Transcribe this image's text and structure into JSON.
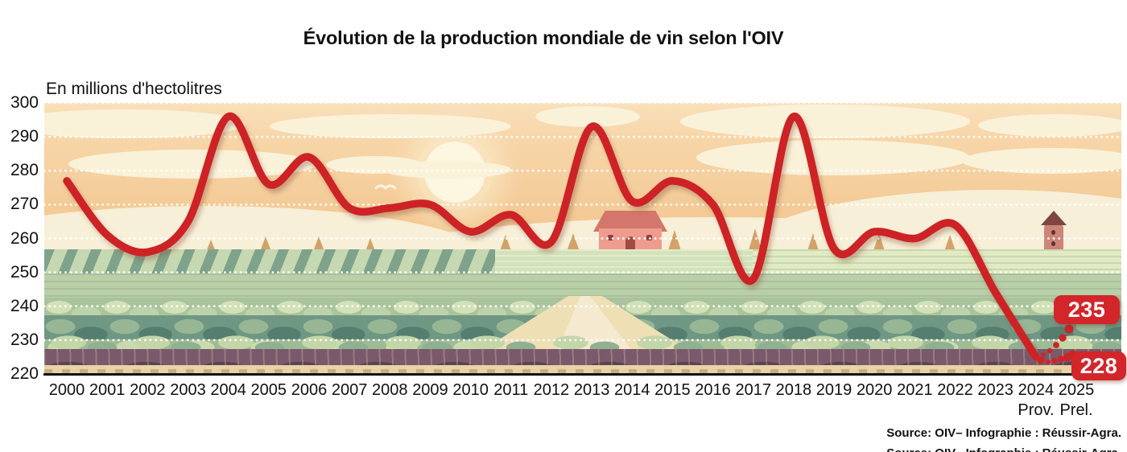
{
  "title": "Évolution de la production mondiale de vin selon l'OIV",
  "unit_label": "En millions d'hectolitres",
  "source_line": "Source: OIV– Infographie : Réussir-Agra.",
  "callout_high": "235",
  "callout_low": "228",
  "x_axis": {
    "years": [
      "2000",
      "2001",
      "2002",
      "2003",
      "2004",
      "2005",
      "2006",
      "2007",
      "2008",
      "2009",
      "2010",
      "2011",
      "2012",
      "2013",
      "2014",
      "2015",
      "2016",
      "2017",
      "2018",
      "2019",
      "2020",
      "2021",
      "2022",
      "2023",
      "2024",
      "2025"
    ],
    "note_under_2024": "Prov.",
    "note_under_2025": "Prel."
  },
  "y_axis": {
    "ticks": [
      300,
      290,
      280,
      270,
      260,
      250,
      240,
      230,
      220
    ]
  },
  "colors": {
    "line_red": "#cd2428",
    "badge_red": "#d2262b",
    "sky_peach": "#f5cf9f",
    "cloud_cream": "#faf1d9",
    "field_green": "#a9c49c",
    "vine_teal": "#6f9784",
    "foreground_plum": "#7a596b",
    "ground_tan": "#e7d5a8",
    "grid_white": "#ffffff",
    "text_black": "#111111"
  },
  "chart_data": {
    "type": "line",
    "title": "Évolution de la production mondiale de vin selon l'OIV",
    "xlabel": "",
    "ylabel": "En millions d'hectolitres",
    "ylim": [
      220,
      300
    ],
    "grid": "horizontal white dotted lines every 10",
    "legend_position": "none",
    "x": [
      2000,
      2001,
      2002,
      2003,
      2004,
      2005,
      2006,
      2007,
      2008,
      2009,
      2010,
      2011,
      2012,
      2013,
      2014,
      2015,
      2016,
      2017,
      2018,
      2019,
      2020,
      2021,
      2022,
      2023,
      2024
    ],
    "values": [
      277,
      261,
      256,
      265,
      296,
      276,
      284,
      269,
      269,
      270,
      262,
      267,
      259,
      293,
      271,
      277,
      270,
      248,
      296,
      257,
      262,
      260,
      264,
      244,
      225
    ],
    "projection": {
      "from_year": 2024,
      "year": 2025,
      "range_low": 228,
      "range_high": 235,
      "style": "dotted fan of growing red dots",
      "labels": [
        "235",
        "228"
      ]
    },
    "annotations": {
      "2024": "Prov.",
      "2025": "Prel."
    },
    "line_color": "#cd2428"
  }
}
